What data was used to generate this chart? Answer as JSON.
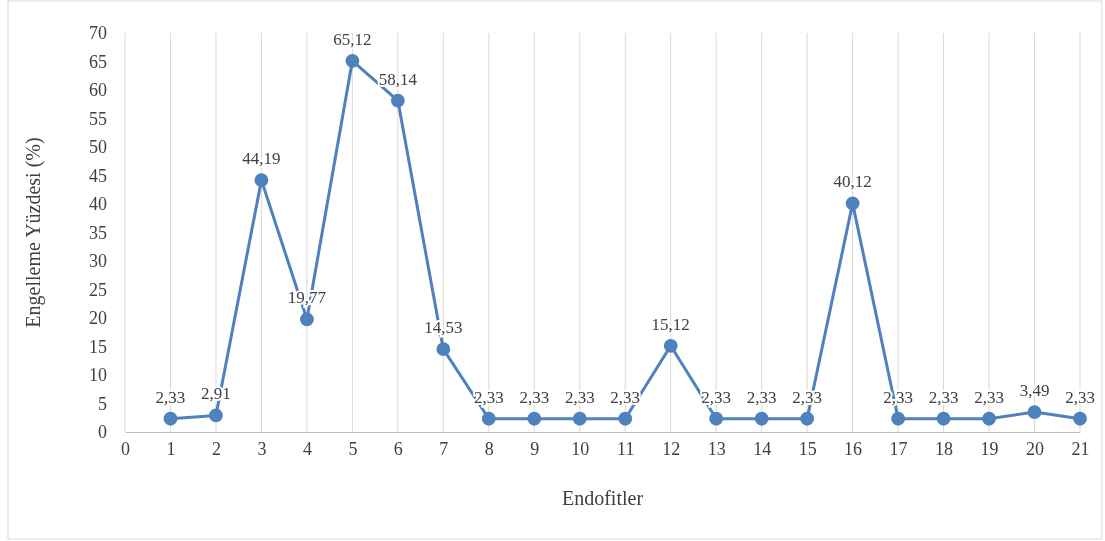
{
  "chart_data": {
    "type": "line",
    "xlabel": "Endofitler",
    "ylabel": "Engelleme Yüzdesi (%)",
    "x": [
      1,
      2,
      3,
      4,
      5,
      6,
      7,
      8,
      9,
      10,
      11,
      12,
      13,
      14,
      15,
      16,
      17,
      18,
      19,
      20,
      21
    ],
    "series": [
      {
        "color": "#4f81bd",
        "values": [
          2.33,
          2.91,
          44.19,
          19.77,
          65.12,
          58.14,
          14.53,
          2.33,
          2.33,
          2.33,
          2.33,
          15.12,
          2.33,
          2.33,
          2.33,
          40.12,
          2.33,
          2.33,
          2.33,
          3.49,
          2.33
        ],
        "value_labels": [
          "2,33",
          "2,91",
          "44,19",
          "19,77",
          "65,12",
          "58,14",
          "14,53",
          "2,33",
          "2,33",
          "2,33",
          "2,33",
          "15,12",
          "2,33",
          "2,33",
          "2,33",
          "40,12",
          "2,33",
          "2,33",
          "2,33",
          "3,49",
          "2,33"
        ]
      }
    ],
    "xlim": [
      0,
      21
    ],
    "xticks": [
      0,
      1,
      2,
      3,
      4,
      5,
      6,
      7,
      8,
      9,
      10,
      11,
      12,
      13,
      14,
      15,
      16,
      17,
      18,
      19,
      20,
      21
    ],
    "ylim": [
      0,
      70
    ],
    "yticks": [
      0,
      5,
      10,
      15,
      20,
      25,
      30,
      35,
      40,
      45,
      50,
      55,
      60,
      65,
      70
    ],
    "grid": "x",
    "marker": "circle",
    "line_style": "solid"
  }
}
